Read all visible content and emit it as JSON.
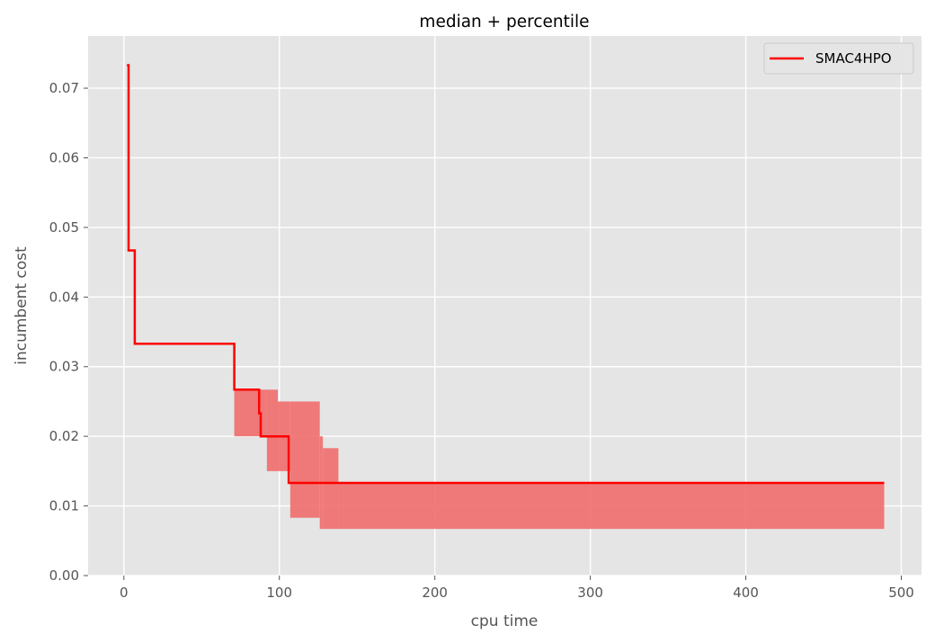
{
  "chart_data": {
    "type": "line",
    "title": "median + percentile",
    "xlabel": "cpu time",
    "ylabel": "incumbent cost",
    "xlim": [
      -23,
      513
    ],
    "ylim": [
      0,
      0.0775
    ],
    "xticks": [
      0,
      100,
      200,
      300,
      400,
      500
    ],
    "yticks": [
      0.0,
      0.01,
      0.02,
      0.03,
      0.04,
      0.05,
      0.06,
      0.07
    ],
    "xtick_labels": [
      "0",
      "100",
      "200",
      "300",
      "400",
      "500"
    ],
    "ytick_labels": [
      "0.00",
      "0.01",
      "0.02",
      "0.03",
      "0.04",
      "0.05",
      "0.06",
      "0.07"
    ],
    "grid": true,
    "legend_position": "top-right",
    "colors": {
      "background": "#e5e5e5",
      "grid": "#ffffff",
      "line": "#ff0000",
      "band": "#f07070"
    },
    "series": [
      {
        "name": "SMAC4HPO",
        "step": "post",
        "x": [
          2,
          3,
          3,
          7,
          71,
          86,
          87,
          88,
          106,
          489
        ],
        "y": [
          0.0733,
          0.0733,
          0.0467,
          0.0333,
          0.0267,
          0.0267,
          0.0233,
          0.02,
          0.0133,
          0.0133
        ]
      }
    ],
    "percentile_band": {
      "step": "post",
      "x": [
        71,
        92,
        99,
        107,
        125,
        126,
        128,
        138,
        489
      ],
      "lower": [
        0.02,
        0.015,
        0.015,
        0.0083,
        0.0083,
        0.0067,
        0.0067,
        0.0067,
        0.0067
      ],
      "upper": [
        0.0267,
        0.0267,
        0.025,
        0.025,
        0.025,
        0.02,
        0.0183,
        0.0133,
        0.0133
      ]
    }
  }
}
